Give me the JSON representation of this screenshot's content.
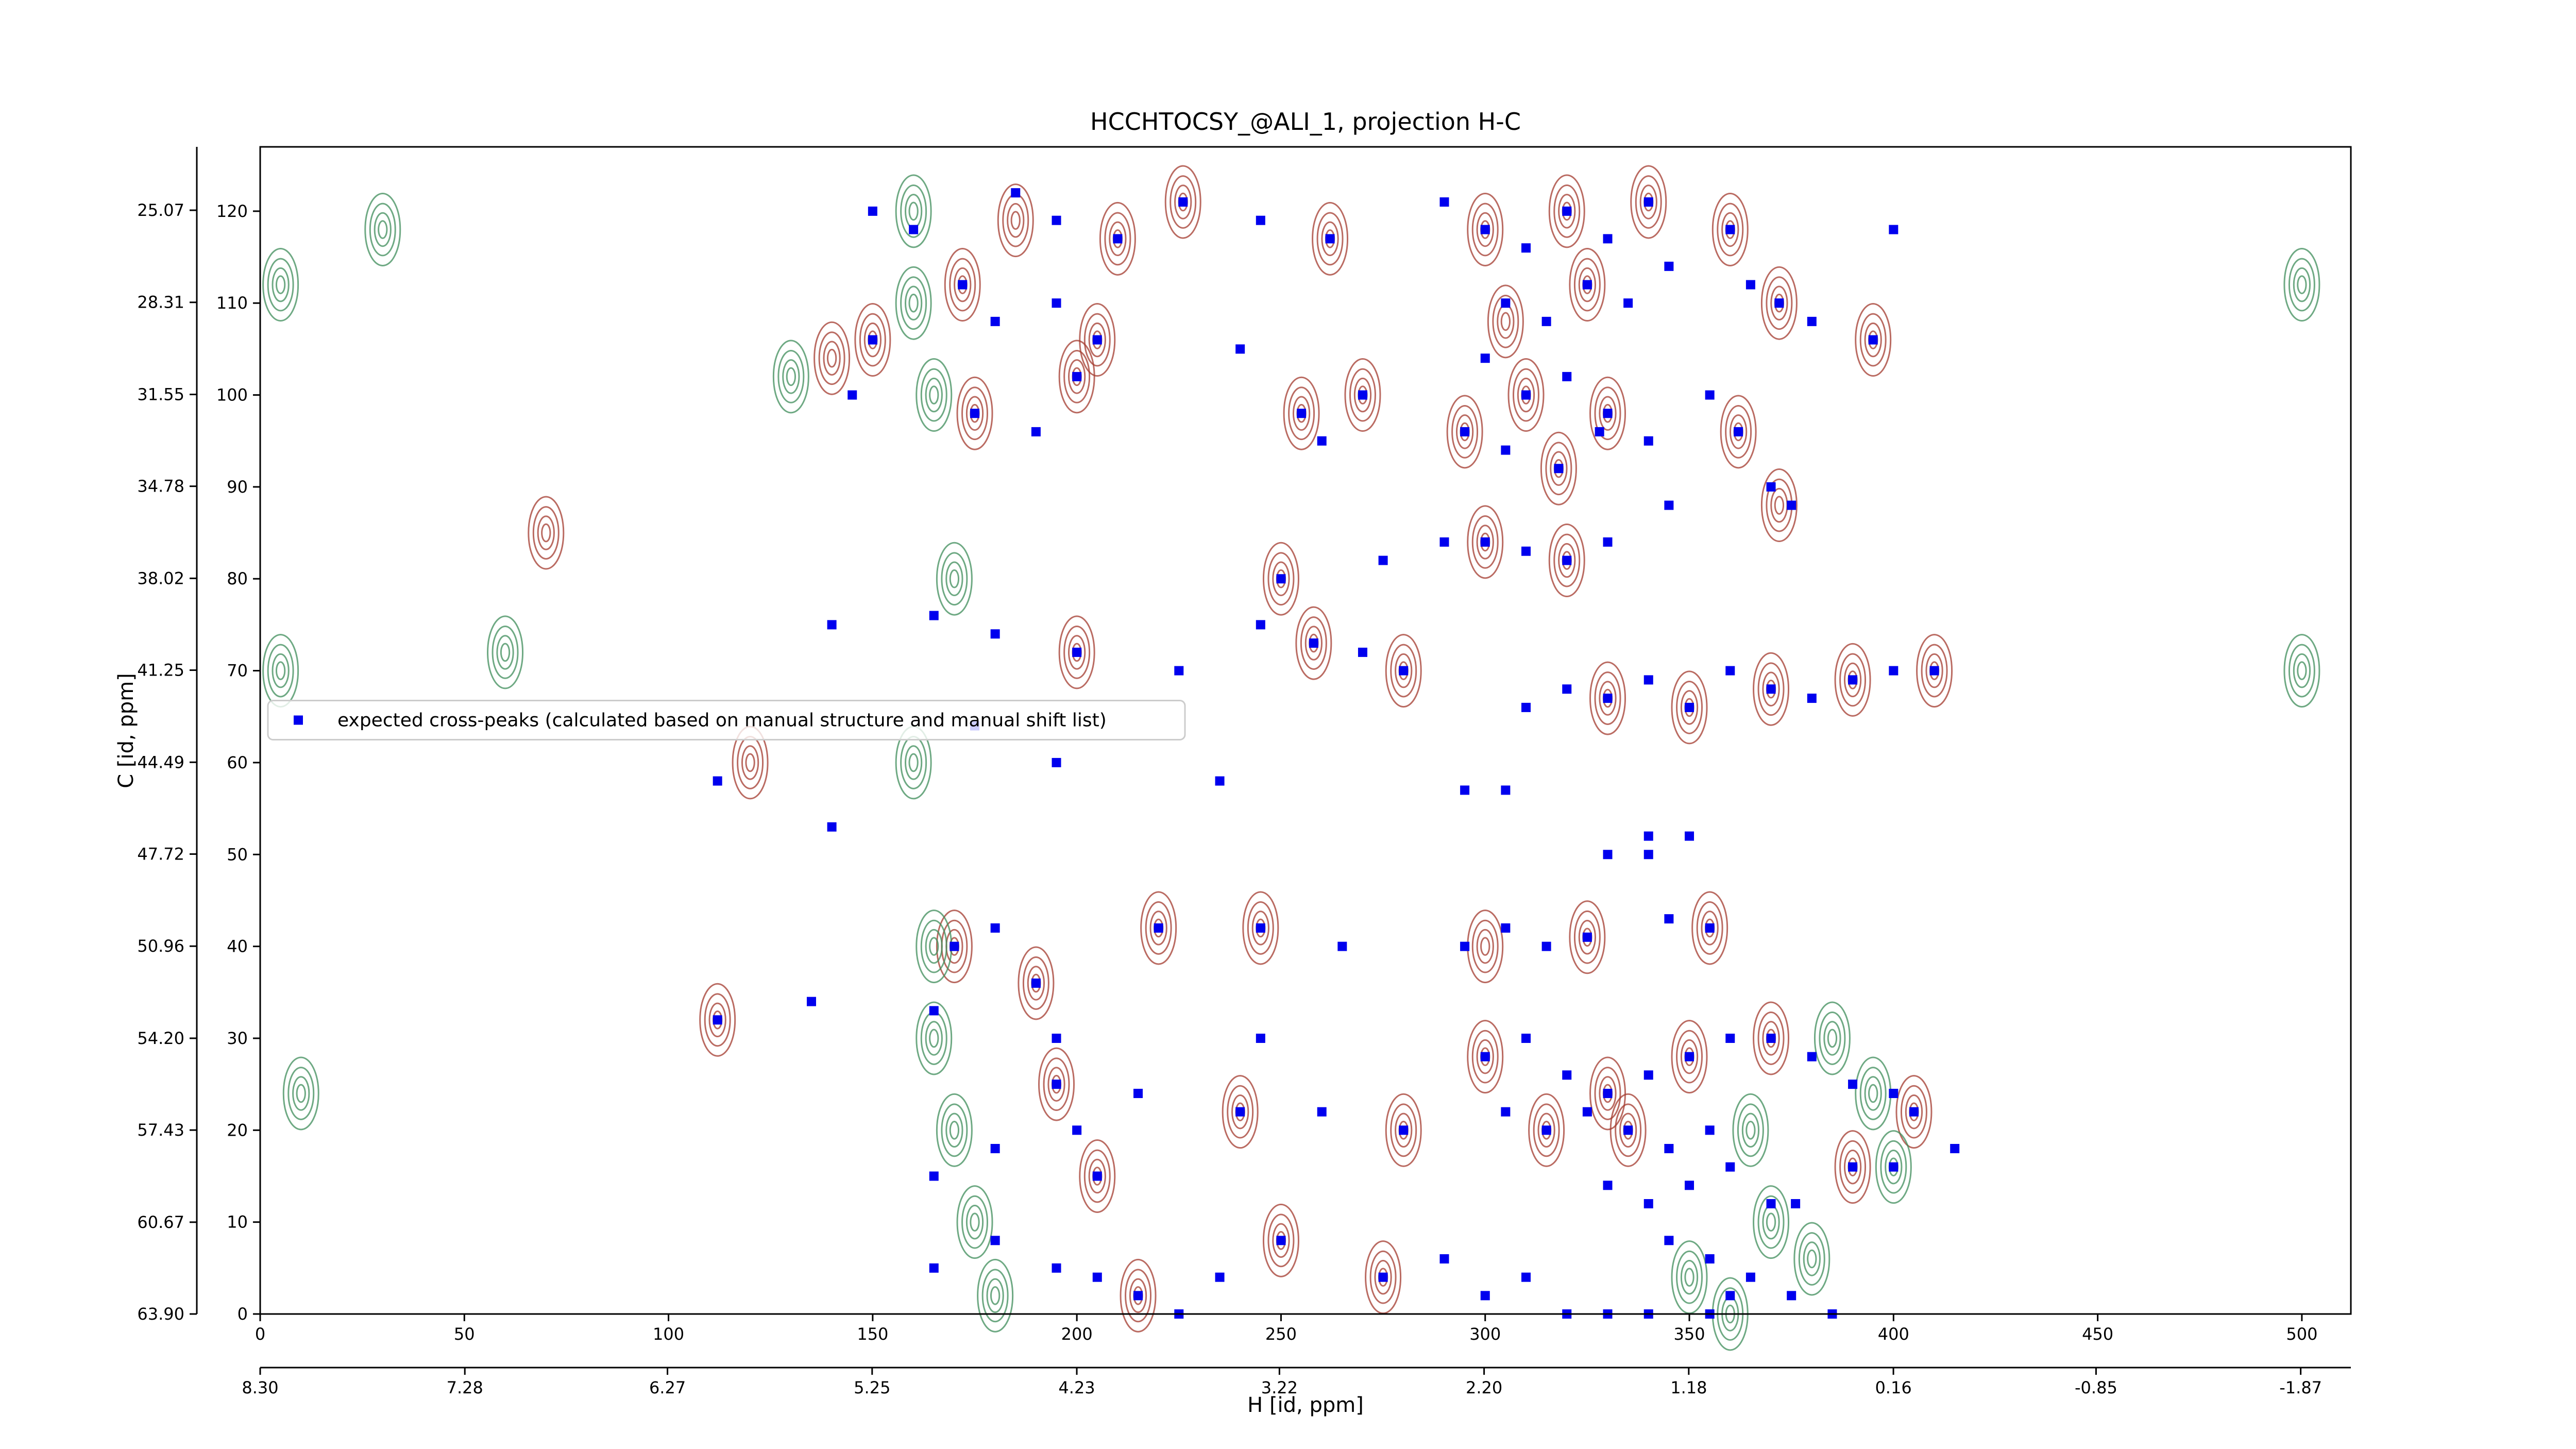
{
  "chart_data": {
    "type": "scatter",
    "title": "HCCHTOCSY_@ALI_1, projection H-C",
    "xlabel": "H [id, ppm]",
    "ylabel": "C [id, ppm]",
    "xlim": [
      0,
      512
    ],
    "xticks": [
      0,
      50,
      100,
      150,
      200,
      250,
      300,
      350,
      400,
      450,
      500
    ],
    "ylim": [
      0,
      127
    ],
    "yticks": [
      0,
      10,
      20,
      30,
      40,
      50,
      60,
      70,
      80,
      90,
      100,
      110,
      120
    ],
    "x2lim": [
      8.3,
      -2.12
    ],
    "x2ticks": [
      {
        "value": 8.3,
        "label": "8.30"
      },
      7.28,
      6.27,
      5.25,
      4.23,
      3.22,
      {
        "value": 2.2,
        "label": "2.20"
      },
      1.18,
      0.16,
      -0.85,
      -1.87
    ],
    "y2lim": [
      63.9,
      22.84
    ],
    "y2ticks": [
      {
        "value": 63.9,
        "label": "63.90"
      },
      60.67,
      57.43,
      {
        "value": 54.2,
        "label": "54.20"
      },
      50.96,
      47.72,
      44.49,
      41.25,
      38.02,
      34.78,
      31.55,
      28.31,
      25.07
    ],
    "legend": "center left",
    "contours": [
      {
        "color": "#a33a2e",
        "x": [
          185,
          210,
          226,
          262,
          300,
          320,
          340,
          305,
          325,
          310,
          330,
          295,
          318,
          360,
          372,
          395,
          172,
          205,
          150,
          175,
          200,
          255,
          270,
          362,
          372,
          300,
          320,
          250,
          258,
          280,
          200,
          330,
          350,
          370,
          390,
          410,
          220,
          245,
          300,
          325,
          355,
          170,
          190,
          112,
          300,
          330,
          350,
          370,
          315,
          335,
          280,
          240,
          195,
          205,
          405,
          390,
          215,
          250,
          275,
          120,
          70,
          140
        ],
        "y": [
          119,
          117,
          121,
          117,
          118,
          120,
          121,
          108,
          112,
          100,
          98,
          96,
          92,
          118,
          110,
          106,
          112,
          106,
          106,
          98,
          102,
          98,
          100,
          96,
          88,
          84,
          82,
          80,
          73,
          70,
          72,
          67,
          66,
          68,
          69,
          70,
          42,
          42,
          40,
          41,
          42,
          40,
          36,
          32,
          28,
          24,
          28,
          30,
          20,
          20,
          20,
          22,
          25,
          15,
          22,
          16,
          2,
          8,
          4,
          60,
          85,
          104
        ]
      },
      {
        "color": "#3d8c5a",
        "x": [
          160,
          165,
          170,
          160,
          165,
          170,
          175,
          180,
          160,
          165,
          130,
          30,
          365,
          370,
          380,
          385,
          395,
          400,
          350,
          360,
          5,
          5,
          500,
          500,
          10,
          60
        ],
        "y": [
          120,
          100,
          80,
          60,
          40,
          20,
          10,
          2,
          110,
          30,
          102,
          118,
          20,
          10,
          6,
          30,
          24,
          16,
          4,
          0,
          112,
          70,
          112,
          70,
          24,
          72
        ]
      }
    ],
    "series": [
      {
        "name": "expected cross-peaks (calculated based on manual structure and manual shift list)",
        "color": "#0000ee",
        "x": [
          185,
          195,
          210,
          226,
          245,
          262,
          290,
          300,
          310,
          320,
          330,
          340,
          345,
          305,
          315,
          325,
          335,
          300,
          310,
          320,
          330,
          295,
          305,
          318,
          328,
          340,
          360,
          365,
          372,
          380,
          395,
          400,
          150,
          160,
          172,
          180,
          195,
          205,
          150,
          145,
          175,
          190,
          200,
          240,
          255,
          260,
          270,
          355,
          362,
          370,
          375,
          345,
          290,
          300,
          310,
          320,
          330,
          275,
          250,
          245,
          258,
          270,
          280,
          225,
          200,
          180,
          165,
          140,
          310,
          320,
          330,
          340,
          350,
          360,
          370,
          380,
          390,
          400,
          410,
          175,
          195,
          235,
          295,
          305,
          340,
          350,
          330,
          340,
          140,
          112,
          220,
          245,
          265,
          295,
          305,
          315,
          325,
          345,
          355,
          170,
          180,
          190,
          112,
          135,
          165,
          195,
          245,
          300,
          310,
          320,
          330,
          340,
          350,
          360,
          370,
          380,
          390,
          400,
          305,
          315,
          325,
          335,
          345,
          355,
          280,
          260,
          240,
          215,
          195,
          200,
          180,
          165,
          205,
          330,
          340,
          350,
          360,
          370,
          376,
          390,
          400,
          415,
          405,
          345,
          355,
          365,
          375,
          310,
          300,
          320,
          330,
          340,
          355,
          360,
          385,
          180,
          195,
          205,
          215,
          225,
          235,
          250,
          275,
          290,
          165
        ],
        "y": [
          122,
          119,
          117,
          121,
          119,
          117,
          121,
          118,
          116,
          120,
          117,
          121,
          114,
          110,
          108,
          112,
          110,
          104,
          100,
          102,
          98,
          96,
          94,
          92,
          96,
          95,
          118,
          112,
          110,
          108,
          106,
          118,
          120,
          118,
          112,
          108,
          110,
          106,
          106,
          100,
          98,
          96,
          102,
          105,
          98,
          95,
          100,
          100,
          96,
          90,
          88,
          88,
          84,
          84,
          83,
          82,
          84,
          82,
          80,
          75,
          73,
          72,
          70,
          70,
          72,
          74,
          76,
          75,
          66,
          68,
          67,
          69,
          66,
          70,
          68,
          67,
          69,
          70,
          70,
          64,
          60,
          58,
          57,
          57,
          52,
          52,
          50,
          50,
          53,
          58,
          42,
          42,
          40,
          40,
          42,
          40,
          41,
          43,
          42,
          40,
          42,
          36,
          32,
          34,
          33,
          30,
          30,
          28,
          30,
          26,
          24,
          26,
          28,
          30,
          30,
          28,
          25,
          24,
          22,
          20,
          22,
          20,
          18,
          20,
          20,
          22,
          22,
          24,
          25,
          20,
          18,
          15,
          15,
          14,
          12,
          14,
          16,
          12,
          12,
          16,
          16,
          18,
          22,
          8,
          6,
          4,
          2,
          4,
          2,
          0,
          0,
          0,
          0,
          2,
          0,
          8,
          5,
          4,
          2,
          0,
          4,
          8,
          4,
          6,
          5
        ]
      }
    ]
  }
}
